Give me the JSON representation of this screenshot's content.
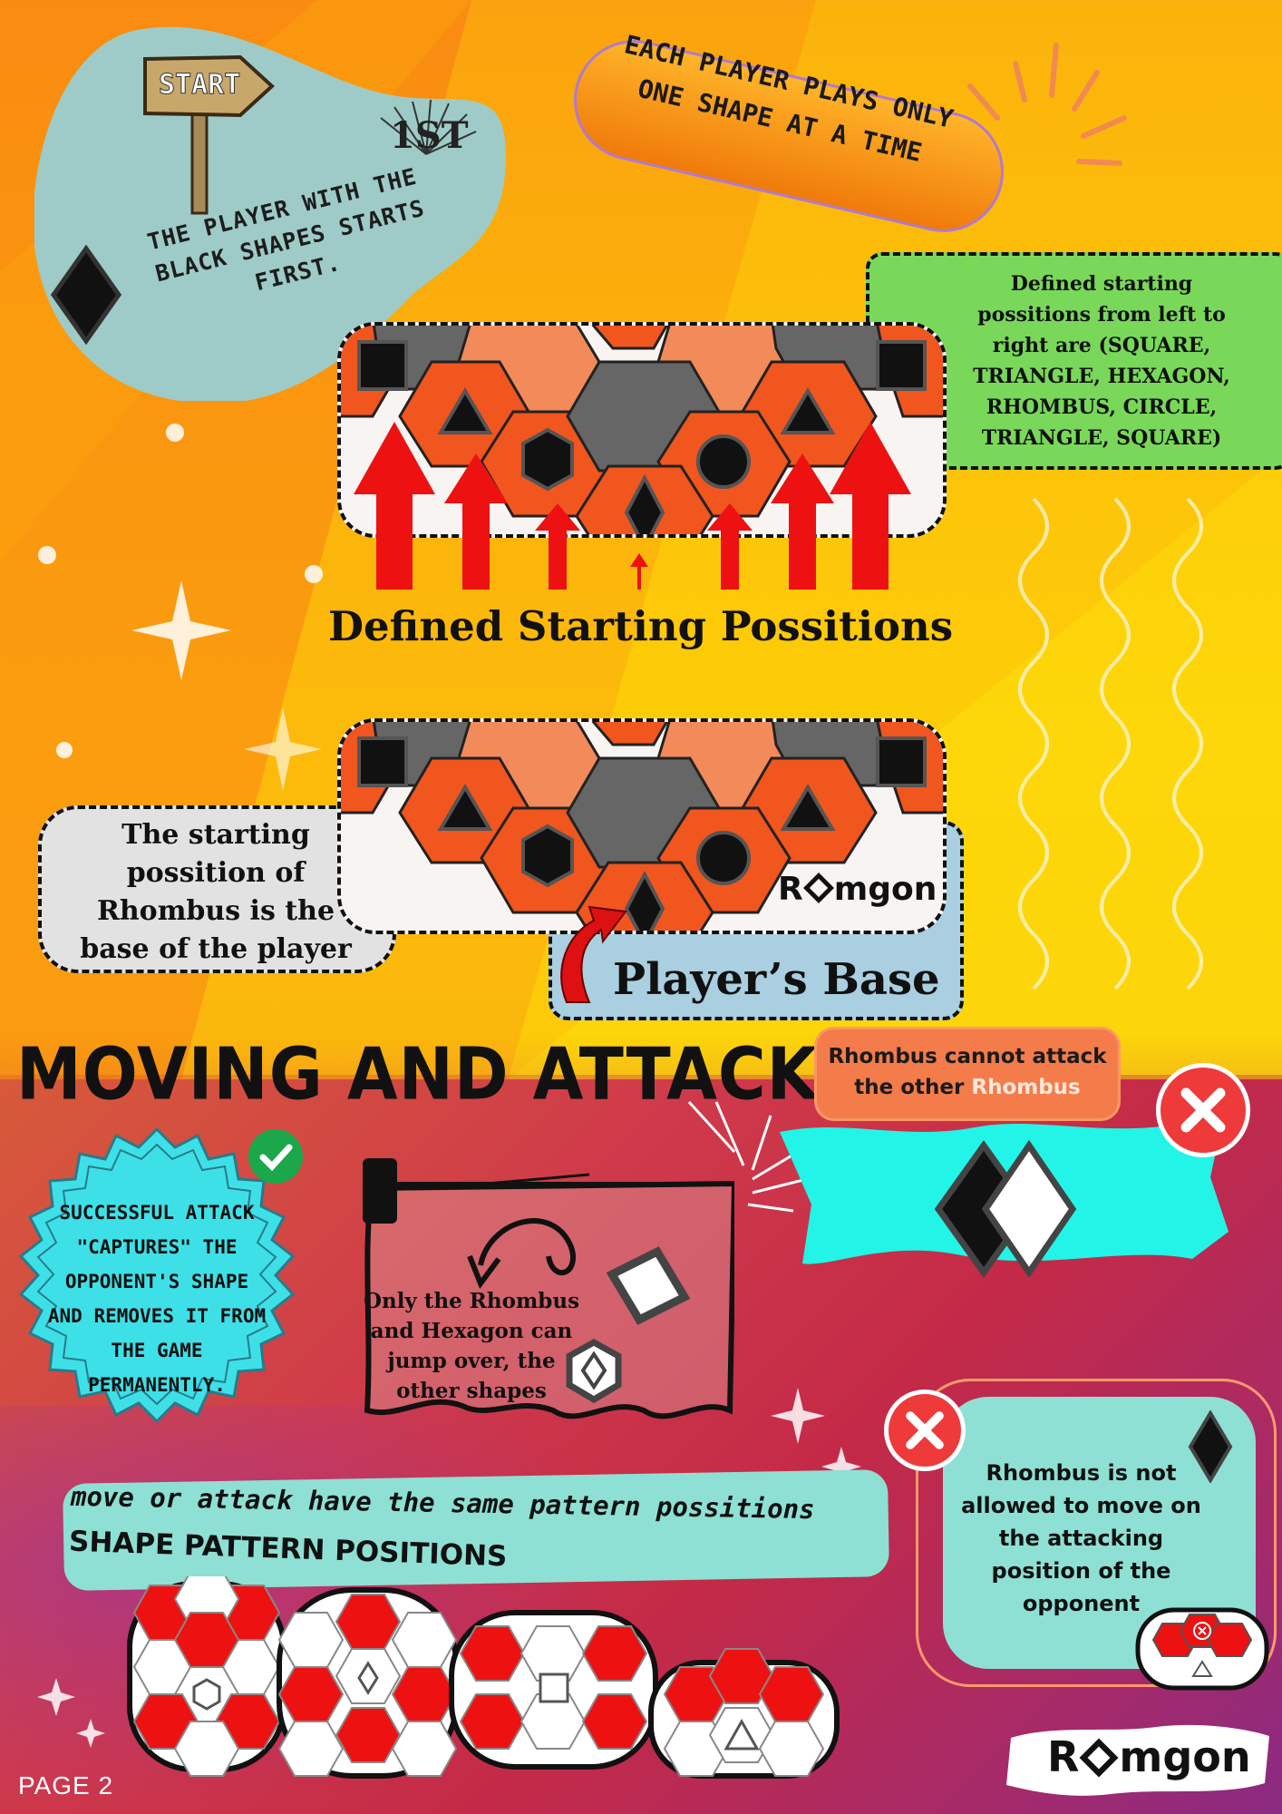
{
  "start_sign": "START",
  "first_badge": "1ST",
  "intro_text": "THE PLAYER WITH THE BLACK SHAPES STARTS FIRST.",
  "rule_pill": "EACH PLAYER PLAYS ONLY ONE SHAPE AT A TIME",
  "positions_note": "Defined starting possitions from left to right are (SQUARE, TRIANGLE, HEXAGON, RHOMBUS, CIRCLE, TRIANGLE, SQUARE)",
  "positions_title": "Defined Starting Possitions",
  "rhombus_base_note": "The starting possition of Rhombus is the base of the player",
  "player_base_label": "Player’s Base",
  "logo_text": "R gon",
  "logo_text_parts": [
    "R",
    "mgon"
  ],
  "section_title": "MOVING AND ATTACKING",
  "rhombus_rule_prefix": "Rhombus cannot attack the other",
  "rhombus_rule_highlight": "Rhombus",
  "capture_note": "SUCCESSFUL ATTACK \"CAPTURES\" THE OPPONENT'S SHAPE AND REMOVES IT FROM THE GAME PERMANENTLY.",
  "jump_note": "Only the Rhombus and Hexagon can jump over, the other shapes",
  "rhombus_move_note": "Rhombus is not allowed to move on the attacking position of the opponent",
  "pattern_line1": "move or attack have the same pattern possitions",
  "pattern_line2": "SHAPE PATTERN POSITIONS",
  "page_label": "PAGE 2",
  "colors": {
    "orange_hex": "#f0561e",
    "light_hex": "#f38a5a",
    "grey_hex": "#666666",
    "arrow_red": "#ee1111",
    "cyan": "#22f5e8",
    "teal": "#8ee0d4"
  },
  "board_shapes_left_to_right": [
    "square",
    "triangle",
    "hexagon",
    "rhombus",
    "circle",
    "triangle",
    "square"
  ]
}
